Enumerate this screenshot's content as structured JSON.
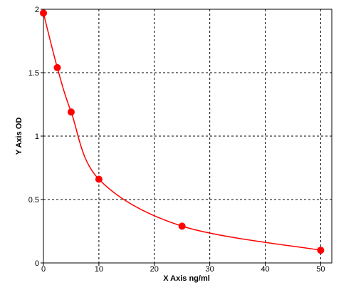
{
  "chart_data": {
    "type": "scatter",
    "x_label": "X Axis ng/ml",
    "y_label": "Y Axis OD",
    "x": [
      0,
      2.5,
      5,
      10,
      25,
      50
    ],
    "values": [
      1.97,
      1.54,
      1.19,
      0.66,
      0.29,
      0.1
    ],
    "color": "#ff0000",
    "fit_line": true,
    "xlim": [
      0,
      52
    ],
    "xticks": [
      0,
      10,
      20,
      30,
      40,
      50
    ],
    "ylim": [
      0,
      2
    ],
    "yticks": [
      0,
      0.5,
      1,
      1.5,
      2
    ],
    "grid": true
  }
}
